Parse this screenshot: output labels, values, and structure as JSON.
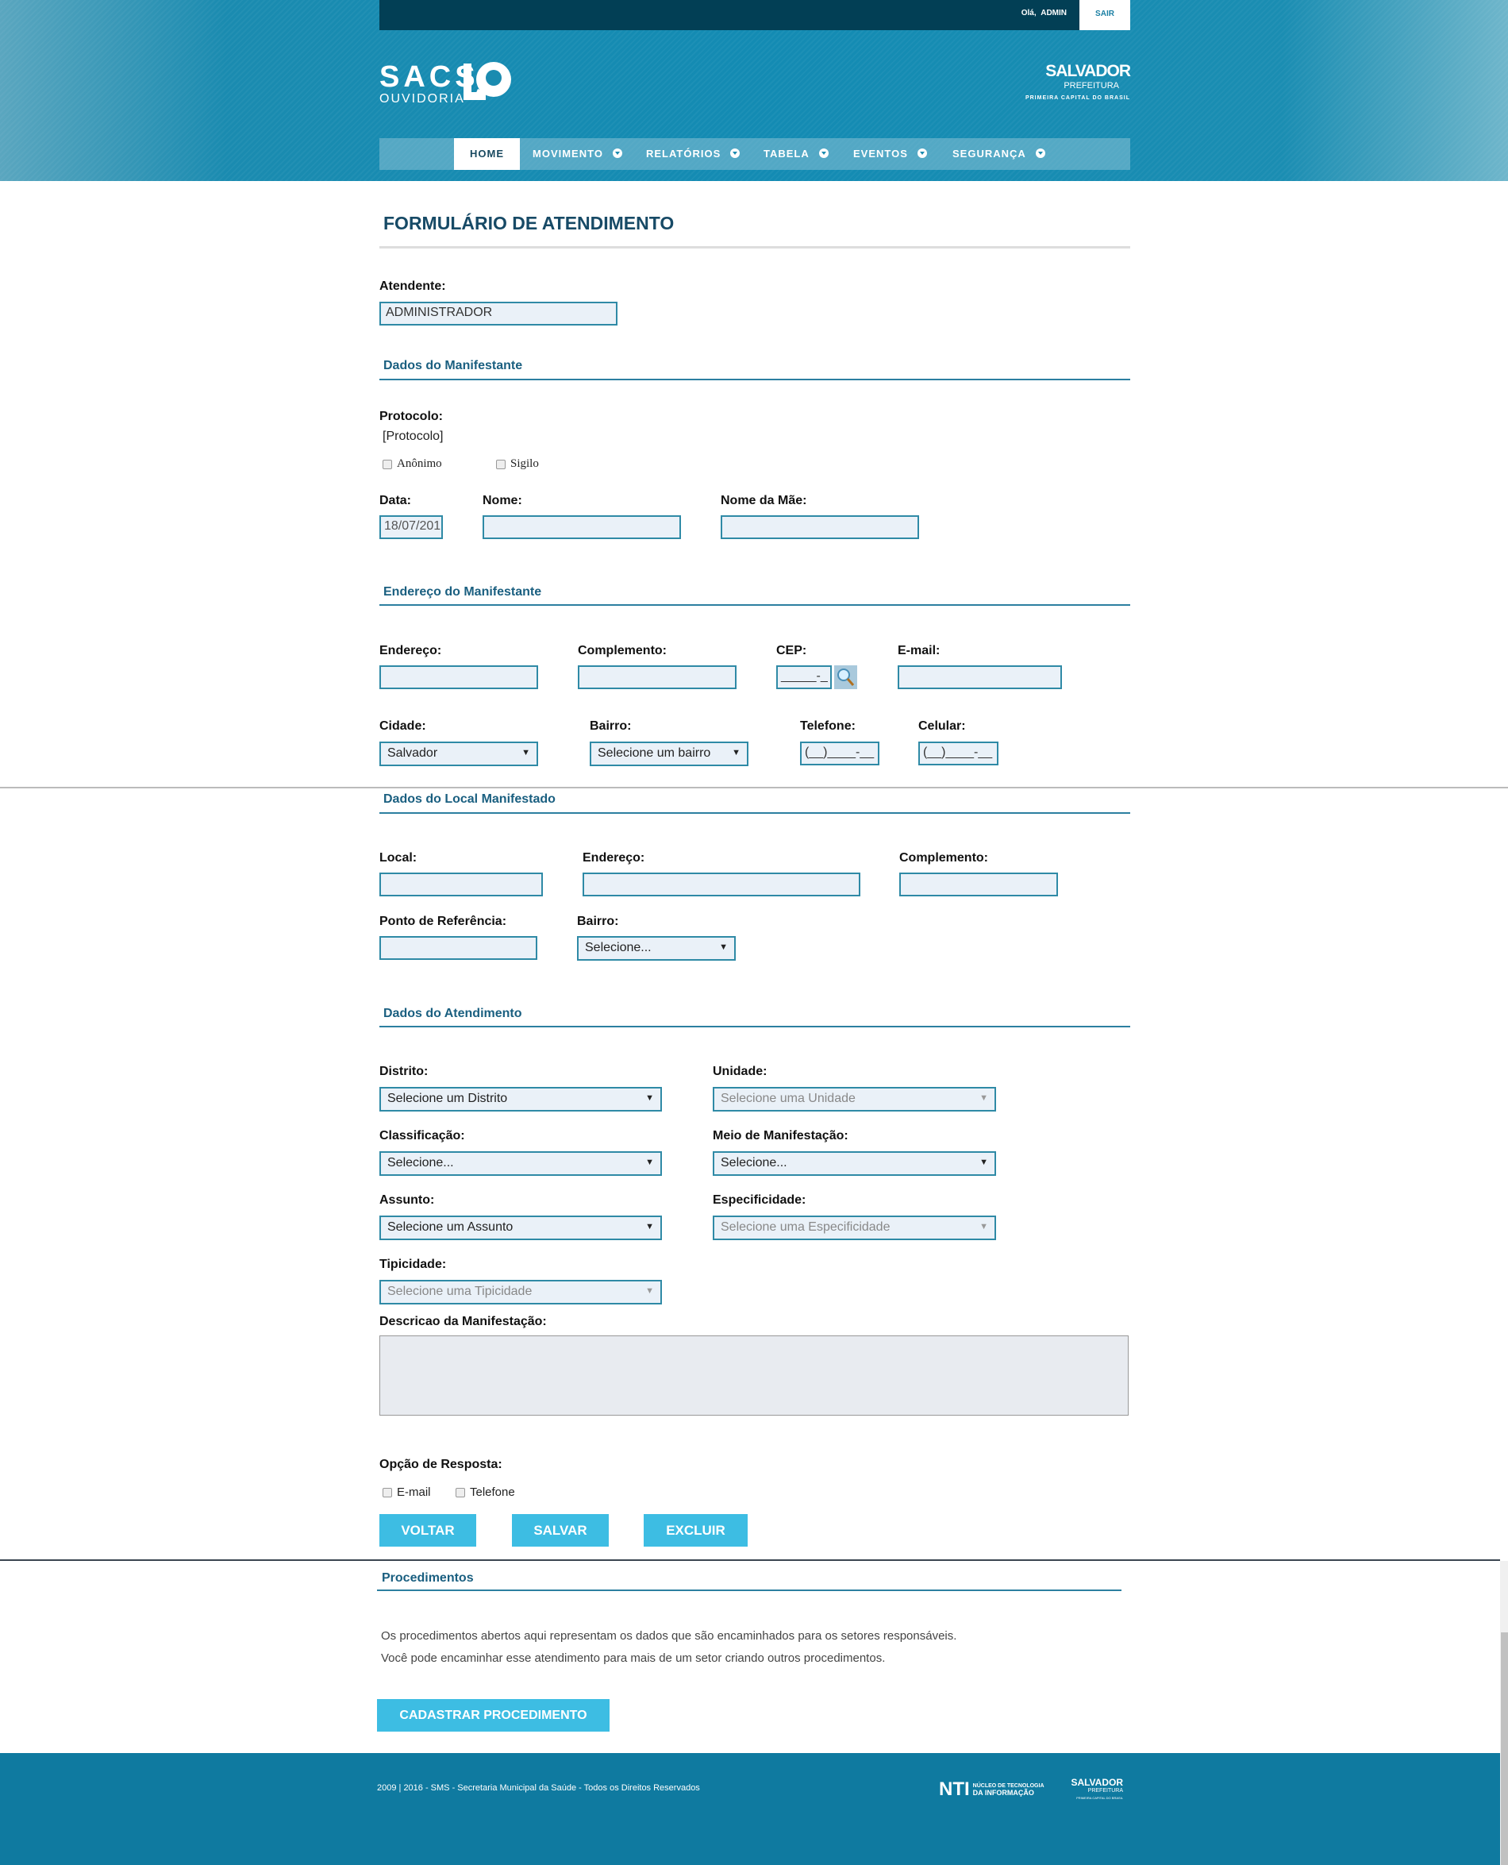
{
  "header": {
    "greeting": "Olá,",
    "user": "ADMIN",
    "logout": "SAIR",
    "logo_title": "SACS",
    "logo_subtitle": "OUVIDORIA",
    "city_logo": {
      "name": "SALVADOR",
      "sub": "PREFEITURA",
      "tagline": "PRIMEIRA CAPITAL DO BRASIL"
    },
    "nav": [
      {
        "label": "HOME",
        "active": true
      },
      {
        "label": "MOVIMENTO",
        "dropdown": true
      },
      {
        "label": "RELATÓRIOS",
        "dropdown": true
      },
      {
        "label": "TABELA",
        "dropdown": true
      },
      {
        "label": "EVENTOS",
        "dropdown": true
      },
      {
        "label": "SEGURANÇA",
        "dropdown": true
      }
    ]
  },
  "form": {
    "title": "FORMULÁRIO DE ATENDIMENTO",
    "atendente_label": "Atendente:",
    "atendente_value": "ADMINISTRADOR",
    "manifestante": {
      "section": "Dados do Manifestante",
      "protocolo_label": "Protocolo:",
      "protocolo_value": "[Protocolo]",
      "anonimo": "Anônimo",
      "sigilo": "Sigilo",
      "data_label": "Data:",
      "data_value": "18/07/201",
      "nome_label": "Nome:",
      "mae_label": "Nome da Mãe:"
    },
    "endereco": {
      "section": "Endereço do Manifestante",
      "endereco_label": "Endereço:",
      "complemento_label": "Complemento:",
      "cep_label": "CEP:",
      "cep_mask": "_____-_",
      "email_label": "E-mail:",
      "cidade_label": "Cidade:",
      "cidade_value": "Salvador",
      "bairro_label": "Bairro:",
      "bairro_value": "Selecione um bairro",
      "telefone_label": "Telefone:",
      "telefone_mask": "(__)____-__",
      "celular_label": "Celular:",
      "celular_mask": "(__)____-__"
    },
    "local": {
      "section": "Dados do Local Manifestado",
      "local_label": "Local:",
      "endereco_label": "Endereço:",
      "complemento_label": "Complemento:",
      "referencia_label": "Ponto de Referência:",
      "bairro_label": "Bairro:",
      "bairro_value": "Selecione..."
    },
    "atendimento": {
      "section": "Dados do Atendimento",
      "distrito_label": "Distrito:",
      "distrito_value": "Selecione um Distrito",
      "unidade_label": "Unidade:",
      "unidade_value": "Selecione uma Unidade",
      "classificacao_label": "Classificação:",
      "classificacao_value": "Selecione...",
      "meio_label": "Meio de Manifestação:",
      "meio_value": "Selecione...",
      "assunto_label": "Assunto:",
      "assunto_value": "Selecione um Assunto",
      "especificidade_label": "Especificidade:",
      "especificidade_value": "Selecione uma Especificidade",
      "tipicidade_label": "Tipicidade:",
      "tipicidade_value": "Selecione uma Tipicidade",
      "descricao_label": "Descricao da Manifestação:"
    },
    "resposta": {
      "label": "Opção de Resposta:",
      "email": "E-mail",
      "telefone": "Telefone"
    },
    "buttons": {
      "voltar": "VOLTAR",
      "salvar": "SALVAR",
      "excluir": "EXCLUIR"
    }
  },
  "procedimentos": {
    "section": "Procedimentos",
    "line1": "Os procedimentos abertos aqui representam os dados que são encaminhados para os setores responsáveis.",
    "line2": "Você pode encaminhar esse atendimento para mais de um setor criando outros procedimentos.",
    "button": "CADASTRAR PROCEDIMENTO"
  },
  "footer": {
    "copyright": "2009 | 2016 - SMS - Secretaria Municipal da Saúde - Todos os Direitos Reservados",
    "nti": {
      "mark": "NTI",
      "line1": "NÚCLEO DE TECNOLOGIA",
      "line2": "DA INFORMAÇÃO"
    },
    "city_logo": {
      "name": "SALVADOR",
      "sub": "PREFEITURA",
      "tagline": "PRIMEIRA CAPITAL DO BRASIL"
    }
  },
  "colors": {
    "brand_dark": "#023f55",
    "accent": "#3dbde3",
    "section": "#1a5f80",
    "footer": "#0f7aa0"
  }
}
